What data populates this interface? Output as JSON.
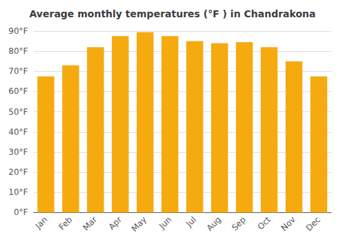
{
  "chart_data": {
    "type": "bar",
    "title": "Average monthly temperatures (°F ) in Chandrakona",
    "categories": [
      "Jan",
      "Feb",
      "Mar",
      "Apr",
      "May",
      "Jun",
      "Jul",
      "Aug",
      "Sep",
      "Oct",
      "Nov",
      "Dec"
    ],
    "values": [
      67.5,
      73.0,
      82.0,
      87.5,
      89.5,
      87.5,
      85.0,
      84.0,
      84.5,
      82.0,
      75.0,
      67.5
    ],
    "color": "#F5AA10",
    "ylim": [
      0,
      90
    ],
    "yticks": [
      {
        "value": 0,
        "label": "0°F"
      },
      {
        "value": 10,
        "label": "10°F"
      },
      {
        "value": 20,
        "label": "20°F"
      },
      {
        "value": 30,
        "label": "30°F"
      },
      {
        "value": 40,
        "label": "40°F"
      },
      {
        "value": 50,
        "label": "50°F"
      },
      {
        "value": 60,
        "label": "60°F"
      },
      {
        "value": 70,
        "label": "70°F"
      },
      {
        "value": 80,
        "label": "80°F"
      },
      {
        "value": 90,
        "label": "90°F"
      }
    ],
    "grid": true
  }
}
